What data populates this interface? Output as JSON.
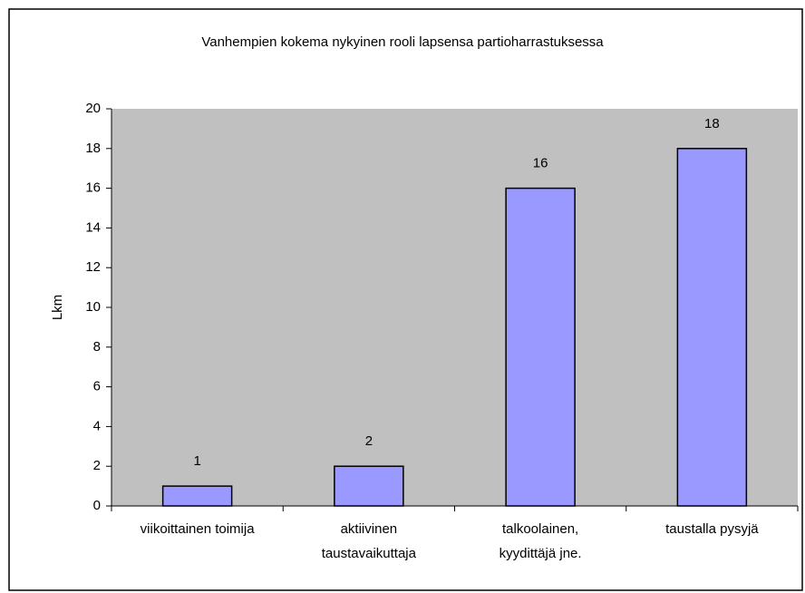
{
  "chart_data": {
    "type": "bar",
    "title": "Vanhempien kokema nykyinen rooli lapsensa partioharrastuksessa",
    "ylabel": "Lkm",
    "categories": [
      "viikoittainen toimija",
      "aktiivinen taustavaikuttaja",
      "talkoolainen, kyydittäjä jne.",
      "taustalla pysyjä"
    ],
    "values": [
      1,
      2,
      16,
      18
    ],
    "color": "#9999ff",
    "ylim": [
      0,
      20
    ],
    "yticks": [
      0,
      2,
      4,
      6,
      8,
      10,
      12,
      14,
      16,
      18,
      20
    ],
    "grid": false
  }
}
